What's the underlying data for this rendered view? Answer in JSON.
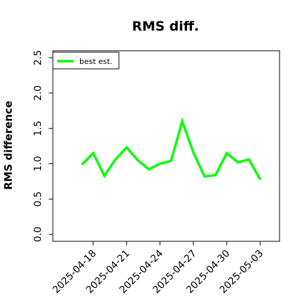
{
  "chart_data": {
    "type": "line",
    "title": "RMS diff.",
    "xlabel": "",
    "ylabel": "RMS difference",
    "ylim": [
      0,
      2.5
    ],
    "xlim": [
      "2025-04-15",
      "2025-05-04"
    ],
    "yticks": [
      "0.0",
      "0.5",
      "1.0",
      "1.5",
      "2.0",
      "2.5"
    ],
    "xticks": [
      "2025-04-18",
      "2025-04-21",
      "2025-04-24",
      "2025-04-27",
      "2025-04-30",
      "2025-05-03"
    ],
    "grid": false,
    "legend_position": "top-left",
    "series": [
      {
        "name": "best est.",
        "color": "#00ff00",
        "x": [
          "2025-04-17",
          "2025-04-18",
          "2025-04-19",
          "2025-04-20",
          "2025-04-21",
          "2025-04-22",
          "2025-04-23",
          "2025-04-24",
          "2025-04-25",
          "2025-04-26",
          "2025-04-27",
          "2025-04-28",
          "2025-04-29",
          "2025-04-30",
          "2025-05-01",
          "2025-05-02",
          "2025-05-03"
        ],
        "y": [
          0.99,
          1.15,
          0.83,
          1.06,
          1.23,
          1.05,
          0.92,
          1.0,
          1.04,
          1.6,
          1.16,
          0.82,
          0.84,
          1.15,
          1.02,
          1.06,
          0.78
        ]
      }
    ]
  }
}
